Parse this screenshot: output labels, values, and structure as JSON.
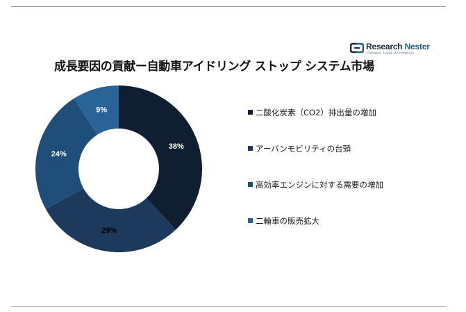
{
  "title": "成長要因の貢献ー自動車アイドリング ストップ システム市場",
  "logo": {
    "name_part1": "Research",
    "name_part2": "Nester",
    "tagline": "Connect. Lead. Accomplish"
  },
  "colors": {
    "rule": "#9a9a9a",
    "label_light": "#ffffff",
    "label_dark": "#000000"
  },
  "chart_data": {
    "type": "pie",
    "donut": true,
    "title": "成長要因の貢献ー自動車アイドリング ストップ システム市場",
    "start_angle_deg": 0,
    "direction": "clockwise",
    "legend_position": "right",
    "slices": [
      {
        "label": "二酸化炭素（CO2）排出量の増加",
        "value": 38,
        "display": "38%",
        "color": "#0f1e30",
        "label_color": "#ffffff"
      },
      {
        "label": "アーバンモビリティの台頭",
        "value": 29,
        "display": "29%",
        "color": "#1d3a5c",
        "label_color": "#000000"
      },
      {
        "label": "高効率エンジンに対する需要の増加",
        "value": 24,
        "display": "24%",
        "color": "#1f4e7a",
        "label_color": "#ffffff"
      },
      {
        "label": "二輪車の販売拡大",
        "value": 9,
        "display": "9%",
        "color": "#2a6496",
        "label_color": "#ffffff"
      }
    ]
  }
}
